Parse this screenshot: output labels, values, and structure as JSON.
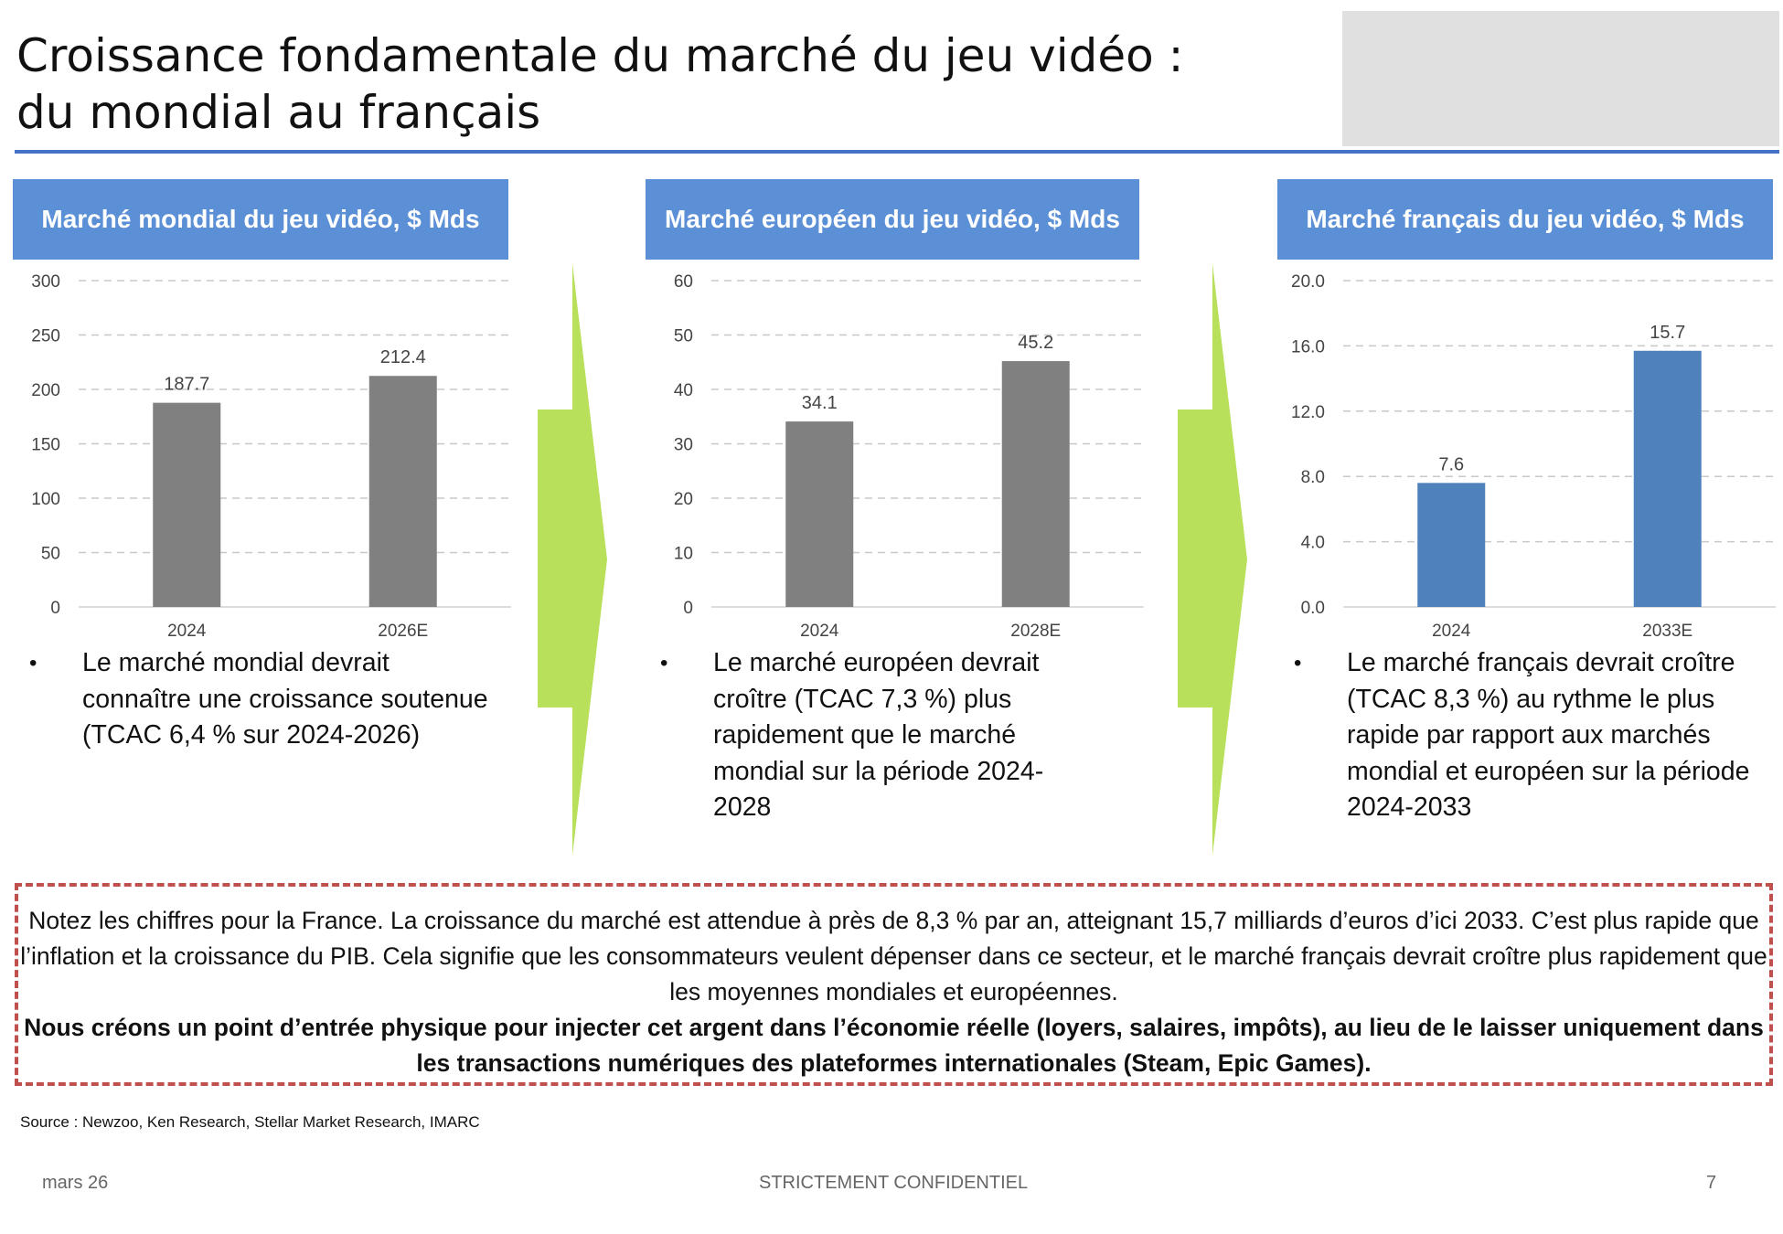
{
  "title": {
    "line1": "Croissance fondamentale du marché du jeu vidéo :",
    "line2": "du mondial au français"
  },
  "colors": {
    "accent_rule": "#4472c4",
    "header_fill": "#5b8fd6",
    "bar_grey": "#808080",
    "bar_blue": "#4f81bd",
    "arrow_green": "#b8e05a",
    "note_border": "#c0504d"
  },
  "panels": [
    {
      "header": "Marché mondial du jeu vidéo, $ Mds",
      "bullet": "Le marché mondial devrait connaître une croissance soutenue (TCAC 6,4 % sur 2024-2026)"
    },
    {
      "header": "Marché européen du jeu vidéo, $ Mds",
      "bullet": "Le marché européen devrait croître (TCAC 7,3 %) plus rapidement que le marché mondial sur la période 2024-2028"
    },
    {
      "header": "Marché français du jeu vidéo, $ Mds",
      "bullet": "Le marché français devrait croître (TCAC 8,3 %) au rythme le plus rapide par rapport aux marchés mondial et européen sur la période 2024-2033"
    }
  ],
  "chart_data": [
    {
      "type": "bar",
      "title": "Marché mondial du jeu vidéo, $ Mds",
      "categories": [
        "2024",
        "2026E"
      ],
      "values": [
        187.7,
        212.4
      ],
      "labels": [
        "187.7",
        "212.4"
      ],
      "ylim": [
        0,
        300
      ],
      "yticks": [
        "0",
        "50",
        "100",
        "150",
        "200",
        "250",
        "300"
      ],
      "bar_color": "#808080",
      "grid": true
    },
    {
      "type": "bar",
      "title": "Marché européen du jeu vidéo, $ Mds",
      "categories": [
        "2024",
        "2028E"
      ],
      "values": [
        34.1,
        45.2
      ],
      "labels": [
        "34.1",
        "45.2"
      ],
      "ylim": [
        0,
        60
      ],
      "yticks": [
        "0",
        "10",
        "20",
        "30",
        "40",
        "50",
        "60"
      ],
      "bar_color": "#808080",
      "grid": true
    },
    {
      "type": "bar",
      "title": "Marché français du jeu vidéo, $ Mds",
      "categories": [
        "2024",
        "2033E"
      ],
      "values": [
        7.6,
        15.7
      ],
      "labels": [
        "7.6",
        "15.7"
      ],
      "ylim": [
        0,
        20
      ],
      "yticks": [
        "0.0",
        "4.0",
        "8.0",
        "12.0",
        "16.0",
        "20.0"
      ],
      "bar_color": "#4f81bd",
      "grid": true
    }
  ],
  "note": {
    "normal": "Notez les chiffres pour la France. La croissance du marché est attendue à près de 8,3 % par an, atteignant 15,7 milliards d’euros d’ici 2033. C’est plus rapide que l’inflation et la croissance du PIB. Cela signifie que les consommateurs veulent dépenser dans ce secteur, et le marché français devrait croître plus rapidement que les moyennes mondiales et européennes.",
    "bold": "Nous créons un point d’entrée physique pour injecter cet argent dans l’économie réelle (loyers, salaires, impôts), au lieu de le laisser uniquement dans les transactions numériques des plateformes internationales (Steam, Epic Games)."
  },
  "source": "Source : Newzoo, Ken Research, Stellar Market Research, IMARC",
  "footer": {
    "date": "mars 26",
    "confidential": "STRICTEMENT CONFIDENTIEL",
    "page": "7"
  }
}
